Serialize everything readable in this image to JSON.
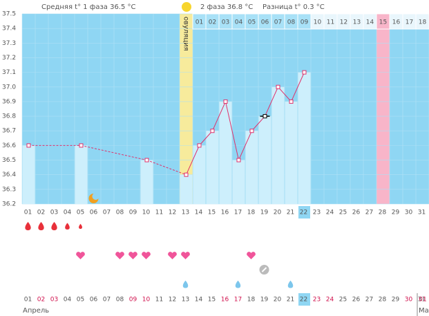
{
  "chart_data": {
    "type": "line",
    "phase1_text": "Средняя t° 1 фаза 36.5 °C",
    "phase2_text": "2 фаза 36.8 °C",
    "difference_text": "Разница t° 0.3 °C",
    "ovulation_label": "овуляция",
    "categories": [
      "01",
      "02",
      "03",
      "04",
      "05",
      "06",
      "07",
      "08",
      "09",
      "10",
      "11",
      "12",
      "13",
      "14",
      "15",
      "16",
      "17",
      "18",
      "19",
      "20",
      "21",
      "22",
      "23",
      "24",
      "25",
      "26",
      "27",
      "28",
      "29",
      "30",
      "31"
    ],
    "cycle_days": [
      null,
      null,
      null,
      null,
      null,
      null,
      null,
      null,
      null,
      null,
      null,
      null,
      null,
      "01",
      "02",
      "03",
      "04",
      "05",
      "06",
      "07",
      "08",
      "09",
      "10",
      "11",
      "12",
      "13",
      "14",
      "15",
      "16",
      "17",
      "18"
    ],
    "values": [
      36.6,
      null,
      null,
      null,
      36.6,
      null,
      null,
      null,
      null,
      36.5,
      null,
      null,
      36.4,
      36.6,
      36.7,
      36.9,
      36.5,
      36.7,
      36.8,
      37.0,
      36.9,
      37.1,
      null,
      null,
      null,
      null,
      null,
      null,
      null,
      null,
      null
    ],
    "ylim": [
      36.2,
      37.5
    ],
    "yticks": [
      36.2,
      36.3,
      36.4,
      36.5,
      36.6,
      36.7,
      36.8,
      36.9,
      {
        "value": 37,
        "label": "37.0"
      },
      37.1,
      37.2,
      37.3,
      37.4,
      37.5
    ],
    "months": [
      "Апрель",
      "Ма"
    ],
    "next_month_categories": [
      "01"
    ],
    "color": "#e0306a"
  }
}
